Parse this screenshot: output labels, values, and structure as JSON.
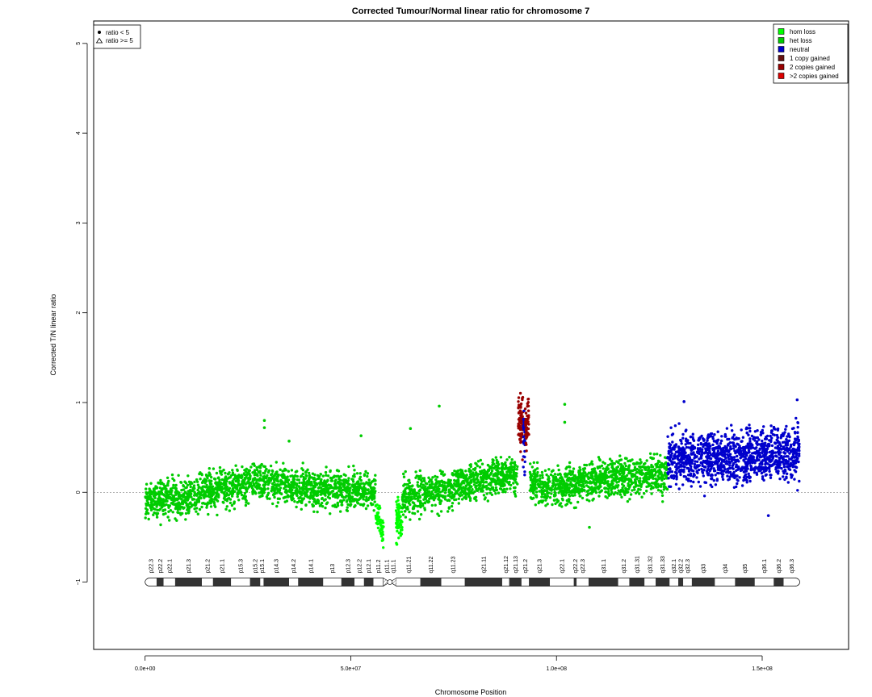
{
  "chart_data": {
    "type": "scatter",
    "title": "Corrected Tumour/Normal linear ratio for chromosome  7",
    "xlabel": "Chromosome Position",
    "ylabel": "Corrected T/N linear ratio",
    "xlim": [
      -12500000,
      171000000
    ],
    "ylim": [
      -1.75,
      5.25
    ],
    "x_ticks": [
      {
        "value": 0,
        "label": "0.0e+00"
      },
      {
        "value": 50000000,
        "label": "5.0e+07"
      },
      {
        "value": 100000000,
        "label": "1.0e+08"
      },
      {
        "value": 150000000,
        "label": "1.5e+08"
      }
    ],
    "y_ticks": [
      {
        "value": -1,
        "label": "−1"
      },
      {
        "value": 0,
        "label": "0"
      },
      {
        "value": 1,
        "label": "1"
      },
      {
        "value": 2,
        "label": "2"
      },
      {
        "value": 3,
        "label": "3"
      },
      {
        "value": 4,
        "label": "4"
      },
      {
        "value": 5,
        "label": "5"
      }
    ],
    "reference_line_y": 0,
    "shape_legend": {
      "placement": "top-left",
      "items": [
        {
          "symbol": "dot",
          "label": "ratio < 5"
        },
        {
          "symbol": "triangle",
          "label": "ratio >= 5"
        }
      ]
    },
    "color_legend": {
      "placement": "top-right",
      "items": [
        {
          "label": "hom loss",
          "color": "#00ff00"
        },
        {
          "label": "het loss",
          "color": "#00cc00"
        },
        {
          "label": "neutral",
          "color": "#0000cc"
        },
        {
          "label": "1 copy gained",
          "color": "#661111"
        },
        {
          "label": "2 copies gained",
          "color": "#990000"
        },
        {
          "label": ">2 copies gained",
          "color": "#dd0000"
        }
      ]
    },
    "segments": [
      {
        "start": 0,
        "end": 56000000,
        "state": "het loss",
        "color": "#00cc00",
        "trend": [
          [
            0,
            -0.1
          ],
          [
            10000000,
            -0.05
          ],
          [
            20000000,
            0.05
          ],
          [
            28000000,
            0.12
          ],
          [
            40000000,
            0.02
          ],
          [
            50000000,
            0.03
          ],
          [
            56000000,
            0.0
          ]
        ],
        "spread": 0.1,
        "n": 1700
      },
      {
        "start": 56000000,
        "end": 58000000,
        "state": "hom loss",
        "color": "#00ff00",
        "trend": [
          [
            56000000,
            -0.2
          ],
          [
            58000000,
            -0.45
          ]
        ],
        "spread": 0.08,
        "n": 60
      },
      {
        "start": 61000000,
        "end": 62500000,
        "state": "hom loss",
        "color": "#00ff00",
        "trend": [
          [
            61000000,
            -0.3
          ],
          [
            62500000,
            -0.35
          ]
        ],
        "spread": 0.12,
        "n": 70
      },
      {
        "start": 62500000,
        "end": 90500000,
        "state": "het loss",
        "color": "#00cc00",
        "trend": [
          [
            62500000,
            -0.05
          ],
          [
            75000000,
            0.05
          ],
          [
            82000000,
            0.15
          ],
          [
            90500000,
            0.2
          ]
        ],
        "spread": 0.1,
        "n": 900
      },
      {
        "start": 90700000,
        "end": 91900000,
        "state": "2 copies gained",
        "color": "#990000",
        "trend": [
          [
            90700000,
            0.78
          ],
          [
            91900000,
            0.8
          ]
        ],
        "spread": 0.14,
        "n": 70
      },
      {
        "start": 91900000,
        "end": 92400000,
        "state": "neutral",
        "color": "#0000cc",
        "trend": [
          [
            91900000,
            0.65
          ],
          [
            92400000,
            0.6
          ]
        ],
        "spread": 0.15,
        "n": 35
      },
      {
        "start": 92400000,
        "end": 93300000,
        "state": "2 copies gained",
        "color": "#990000",
        "trend": [
          [
            92400000,
            0.72
          ],
          [
            93300000,
            0.75
          ]
        ],
        "spread": 0.14,
        "n": 45
      },
      {
        "start": 93500000,
        "end": 127000000,
        "state": "het loss",
        "color": "#00cc00",
        "trend": [
          [
            93500000,
            0.15
          ],
          [
            97000000,
            0.02
          ],
          [
            110000000,
            0.15
          ],
          [
            127000000,
            0.22
          ]
        ],
        "spread": 0.1,
        "n": 1100
      },
      {
        "start": 127000000,
        "end": 159000000,
        "state": "neutral",
        "color": "#0000cc",
        "trend": [
          [
            127000000,
            0.38
          ],
          [
            140000000,
            0.4
          ],
          [
            150000000,
            0.42
          ],
          [
            159000000,
            0.45
          ]
        ],
        "spread": 0.14,
        "n": 1200
      }
    ],
    "outliers": [
      {
        "x": 29000000,
        "y": 0.8,
        "color": "#00cc00"
      },
      {
        "x": 29000000,
        "y": 0.72,
        "color": "#00cc00"
      },
      {
        "x": 35000000,
        "y": 0.57,
        "color": "#00cc00"
      },
      {
        "x": 52500000,
        "y": 0.63,
        "color": "#00cc00"
      },
      {
        "x": 64500000,
        "y": 0.71,
        "color": "#00cc00"
      },
      {
        "x": 71500000,
        "y": 0.96,
        "color": "#00cc00"
      },
      {
        "x": 102000000,
        "y": 0.98,
        "color": "#00cc00"
      },
      {
        "x": 102000000,
        "y": 0.78,
        "color": "#00cc00"
      },
      {
        "x": 108000000,
        "y": -0.39,
        "color": "#00cc00"
      },
      {
        "x": 131000000,
        "y": 1.01,
        "color": "#0000cc"
      },
      {
        "x": 151500000,
        "y": -0.26,
        "color": "#0000cc"
      },
      {
        "x": 158500000,
        "y": 1.03,
        "color": "#0000cc"
      },
      {
        "x": 57800000,
        "y": -0.53,
        "color": "#00ff00"
      },
      {
        "x": 61200000,
        "y": -0.58,
        "color": "#00ff00"
      }
    ],
    "ideogram": {
      "length": 159138663,
      "centromere": 59500000,
      "bands": [
        {
          "name": "p22.3",
          "start": 0,
          "end": 2800000,
          "stain": "gneg"
        },
        {
          "name": "p22.2",
          "start": 2800000,
          "end": 4500000,
          "stain": "gpos"
        },
        {
          "name": "p22.1",
          "start": 4500000,
          "end": 7300000,
          "stain": "gneg"
        },
        {
          "name": "p21.3",
          "start": 7300000,
          "end": 13800000,
          "stain": "gpos"
        },
        {
          "name": "p21.2",
          "start": 13800000,
          "end": 16500000,
          "stain": "gneg"
        },
        {
          "name": "p21.1",
          "start": 16500000,
          "end": 20900000,
          "stain": "gpos"
        },
        {
          "name": "p15.3",
          "start": 20900000,
          "end": 25500000,
          "stain": "gneg"
        },
        {
          "name": "p15.2",
          "start": 25500000,
          "end": 28000000,
          "stain": "gpos"
        },
        {
          "name": "p15.1",
          "start": 28000000,
          "end": 28800000,
          "stain": "gneg"
        },
        {
          "name": "p14.3",
          "start": 28800000,
          "end": 35000000,
          "stain": "gpos"
        },
        {
          "name": "p14.2",
          "start": 35000000,
          "end": 37200000,
          "stain": "gneg"
        },
        {
          "name": "p14.1",
          "start": 37200000,
          "end": 43300000,
          "stain": "gpos"
        },
        {
          "name": "p13",
          "start": 43300000,
          "end": 47700000,
          "stain": "gneg"
        },
        {
          "name": "p12.3",
          "start": 47700000,
          "end": 50900000,
          "stain": "gpos"
        },
        {
          "name": "p12.2",
          "start": 50900000,
          "end": 53200000,
          "stain": "gneg"
        },
        {
          "name": "p12.1",
          "start": 53200000,
          "end": 55500000,
          "stain": "gpos"
        },
        {
          "name": "p11.2",
          "start": 55500000,
          "end": 57900000,
          "stain": "gneg"
        },
        {
          "name": "p11.1",
          "start": 57900000,
          "end": 59500000,
          "stain": "acen"
        },
        {
          "name": "q11.1",
          "start": 59500000,
          "end": 61100000,
          "stain": "acen"
        },
        {
          "name": "q11.21",
          "start": 61100000,
          "end": 66900000,
          "stain": "gneg"
        },
        {
          "name": "q11.22",
          "start": 66900000,
          "end": 72000000,
          "stain": "gpos"
        },
        {
          "name": "q11.23",
          "start": 72000000,
          "end": 77700000,
          "stain": "gneg"
        },
        {
          "name": "q21.11",
          "start": 77700000,
          "end": 86800000,
          "stain": "gpos"
        },
        {
          "name": "q21.12",
          "start": 86800000,
          "end": 88500000,
          "stain": "gneg"
        },
        {
          "name": "q21.13",
          "start": 88500000,
          "end": 91500000,
          "stain": "gpos"
        },
        {
          "name": "q21.2",
          "start": 91500000,
          "end": 93300000,
          "stain": "gneg"
        },
        {
          "name": "q21.3",
          "start": 93300000,
          "end": 98400000,
          "stain": "gpos"
        },
        {
          "name": "q22.1",
          "start": 98400000,
          "end": 104200000,
          "stain": "gneg"
        },
        {
          "name": "q22.2",
          "start": 104200000,
          "end": 104900000,
          "stain": "gpos"
        },
        {
          "name": "q22.3",
          "start": 104900000,
          "end": 107800000,
          "stain": "gneg"
        },
        {
          "name": "q31.1",
          "start": 107800000,
          "end": 115000000,
          "stain": "gpos"
        },
        {
          "name": "q31.2",
          "start": 115000000,
          "end": 117700000,
          "stain": "gneg"
        },
        {
          "name": "q31.31",
          "start": 117700000,
          "end": 121400000,
          "stain": "gpos"
        },
        {
          "name": "q31.32",
          "start": 121400000,
          "end": 124100000,
          "stain": "gneg"
        },
        {
          "name": "q31.33",
          "start": 124100000,
          "end": 127500000,
          "stain": "gpos"
        },
        {
          "name": "q32.1",
          "start": 127500000,
          "end": 129600000,
          "stain": "gneg"
        },
        {
          "name": "q32.2",
          "start": 129600000,
          "end": 130800000,
          "stain": "gpos"
        },
        {
          "name": "q32.3",
          "start": 130800000,
          "end": 132900000,
          "stain": "gneg"
        },
        {
          "name": "q33",
          "start": 132900000,
          "end": 138500000,
          "stain": "gpos"
        },
        {
          "name": "q34",
          "start": 138500000,
          "end": 143400000,
          "stain": "gneg"
        },
        {
          "name": "q35",
          "start": 143400000,
          "end": 148200000,
          "stain": "gpos"
        },
        {
          "name": "q36.1",
          "start": 148200000,
          "end": 152800000,
          "stain": "gneg"
        },
        {
          "name": "q36.2",
          "start": 152800000,
          "end": 155200000,
          "stain": "gpos"
        },
        {
          "name": "q36.3",
          "start": 155200000,
          "end": 159138663,
          "stain": "gneg"
        }
      ]
    }
  }
}
